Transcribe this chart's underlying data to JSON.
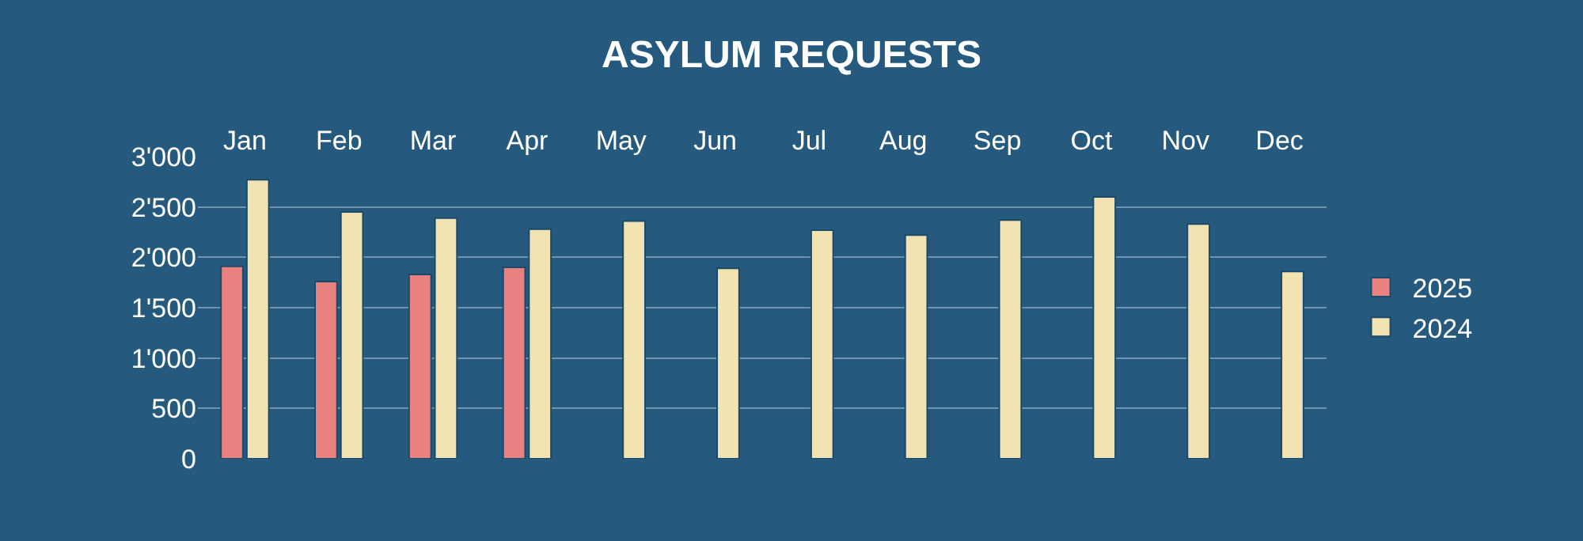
{
  "chart_data": {
    "type": "bar",
    "title": "ASYLUM REQUESTS",
    "categories": [
      "Jan",
      "Feb",
      "Mar",
      "Apr",
      "May",
      "Jun",
      "Jul",
      "Aug",
      "Sep",
      "Oct",
      "Nov",
      "Dec"
    ],
    "series": [
      {
        "name": "2025",
        "color": "#e8817f",
        "values": [
          1910,
          1760,
          1830,
          1900,
          null,
          null,
          null,
          null,
          null,
          null,
          null,
          null
        ]
      },
      {
        "name": "2024",
        "color": "#f2e3b3",
        "values": [
          2770,
          2450,
          2390,
          2280,
          2360,
          1890,
          2270,
          2220,
          2370,
          2600,
          2330,
          1860
        ]
      }
    ],
    "ylim": [
      0,
      3000
    ],
    "yticks": [
      {
        "value": 0,
        "label": "0"
      },
      {
        "value": 500,
        "label": "500"
      },
      {
        "value": 1000,
        "label": "1'000"
      },
      {
        "value": 1500,
        "label": "1'500"
      },
      {
        "value": 2000,
        "label": "2'000"
      },
      {
        "value": 2500,
        "label": "2'500"
      },
      {
        "value": 3000,
        "label": "3'000"
      }
    ],
    "grid": "y",
    "legend": "right"
  }
}
